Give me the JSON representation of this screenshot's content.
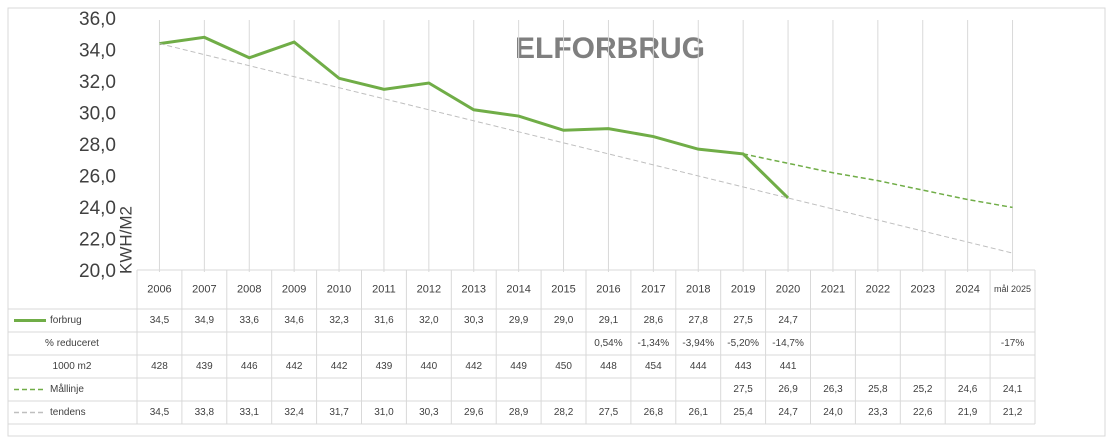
{
  "chart_data": {
    "type": "line",
    "title": "ELFORBRUG",
    "y_label": "KWH/M2",
    "categories": [
      "2006",
      "2007",
      "2008",
      "2009",
      "2010",
      "2011",
      "2012",
      "2013",
      "2014",
      "2015",
      "2016",
      "2017",
      "2018",
      "2019",
      "2020",
      "2021",
      "2022",
      "2023",
      "2024",
      "mål 2025"
    ],
    "ylim": [
      20,
      36
    ],
    "yticks": [
      {
        "value": 20,
        "label": "20,0"
      },
      {
        "value": 22,
        "label": "22,0"
      },
      {
        "value": 24,
        "label": "24,0"
      },
      {
        "value": 26,
        "label": "26,0"
      },
      {
        "value": 28,
        "label": "28,0"
      },
      {
        "value": 30,
        "label": "30,0"
      },
      {
        "value": 32,
        "label": "32,0"
      },
      {
        "value": 34,
        "label": "34,0"
      },
      {
        "value": 36,
        "label": "36,0"
      }
    ],
    "series": [
      {
        "name": "forbrug",
        "color": "#70ad47",
        "dash": false,
        "values": [
          34.5,
          34.9,
          33.6,
          34.6,
          32.3,
          31.6,
          32.0,
          30.3,
          29.9,
          29.0,
          29.1,
          28.6,
          27.8,
          27.5,
          24.7,
          null,
          null,
          null,
          null,
          null
        ],
        "value_labels": [
          "34,5",
          "34,9",
          "33,6",
          "34,6",
          "32,3",
          "31,6",
          "32,0",
          "30,3",
          "29,9",
          "29,0",
          "29,1",
          "28,6",
          "27,8",
          "27,5",
          "24,7",
          null,
          null,
          null,
          null,
          null
        ]
      },
      {
        "name": "Mållinje",
        "color": "#70ad47",
        "dash": true,
        "values": [
          null,
          null,
          null,
          null,
          null,
          null,
          null,
          null,
          null,
          null,
          null,
          null,
          null,
          27.5,
          26.9,
          26.3,
          25.8,
          25.2,
          24.6,
          24.1
        ],
        "value_labels": [
          null,
          null,
          null,
          null,
          null,
          null,
          null,
          null,
          null,
          null,
          null,
          null,
          null,
          "27,5",
          "26,9",
          "26,3",
          "25,8",
          "25,2",
          "24,6",
          "24,1"
        ]
      },
      {
        "name": "tendens",
        "color": "#bfbfbf",
        "dash": true,
        "values": [
          34.5,
          33.8,
          33.1,
          32.4,
          31.7,
          31.0,
          30.3,
          29.6,
          28.9,
          28.2,
          27.5,
          26.8,
          26.1,
          25.4,
          24.7,
          24.0,
          23.3,
          22.6,
          21.9,
          21.2
        ],
        "value_labels": [
          "34,5",
          "33,8",
          "33,1",
          "32,4",
          "31,7",
          "31,0",
          "30,3",
          "29,6",
          "28,9",
          "28,2",
          "27,5",
          "26,8",
          "26,1",
          "25,4",
          "24,7",
          "24,0",
          "23,3",
          "22,6",
          "21,9",
          "21,2"
        ]
      }
    ],
    "extra_rows": [
      {
        "name": "% reduceret",
        "values": [
          null,
          null,
          null,
          null,
          null,
          null,
          null,
          null,
          null,
          null,
          0.54,
          -1.34,
          -3.94,
          -5.2,
          -14.7,
          null,
          null,
          null,
          null,
          -17
        ],
        "value_labels": [
          null,
          null,
          null,
          null,
          null,
          null,
          null,
          null,
          null,
          null,
          "0,54%",
          "-1,34%",
          "-3,94%",
          "-5,20%",
          "-14,7%",
          null,
          null,
          null,
          null,
          "-17%"
        ]
      },
      {
        "name": "1000 m2",
        "values": [
          428,
          439,
          446,
          442,
          442,
          439,
          440,
          442,
          449,
          450,
          448,
          454,
          444,
          443,
          441,
          null,
          null,
          null,
          null,
          null
        ]
      }
    ]
  }
}
